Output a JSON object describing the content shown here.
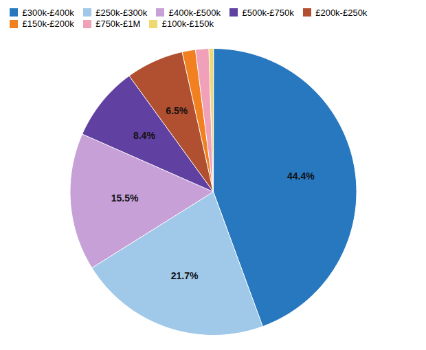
{
  "chart_data": {
    "type": "pie",
    "categories": [
      "£300k-£400k",
      "£250k-£300k",
      "£400k-£500k",
      "£500k-£750k",
      "£200k-£250k",
      "£150k-£200k",
      "£750k-£1M",
      "£100k-£150k"
    ],
    "values": [
      44.4,
      21.7,
      15.5,
      8.4,
      6.5,
      1.5,
      1.5,
      0.5
    ],
    "colors": [
      "#2878c0",
      "#a0c8e8",
      "#c8a0d8",
      "#6040a0",
      "#b05030",
      "#f08020",
      "#f0a0b8",
      "#f0d870"
    ],
    "data_labels": true,
    "value_labels": [
      "44.4%",
      "21.7%",
      "15.5%",
      "8.4%",
      "6.5%",
      null,
      null,
      null
    ],
    "legend": "top"
  }
}
